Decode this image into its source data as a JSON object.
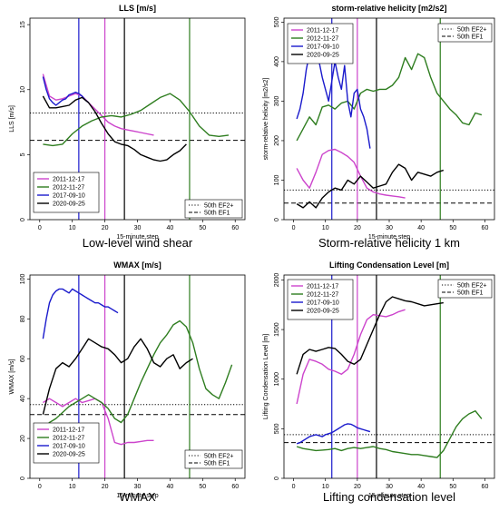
{
  "figure": {
    "captions": [
      "Low-level wind shear",
      "Storm-relative helicity 1 km",
      "WMAX",
      "Lifting condensation level"
    ]
  },
  "colors": {
    "2011-12-17": "#cc44cc",
    "2012-11-27": "#2e7d1f",
    "2017-09-10": "#1a1acc",
    "2020-09-25": "#000000"
  },
  "chart_data": [
    {
      "type": "line",
      "title": "LLS [m/s]",
      "xlabel": "15-minute step",
      "ylabel": "LLS [m/s]",
      "xlim": [
        -3,
        63
      ],
      "ylim": [
        0,
        15.5
      ],
      "xticks": [
        0,
        10,
        20,
        30,
        40,
        50,
        60
      ],
      "yticks": [
        0,
        5,
        10,
        15
      ],
      "grid": false,
      "legend_series_position": "bottom-left",
      "legend_ref_position": "bottom-right",
      "series": [
        {
          "name": "2011-12-17",
          "x": [
            1,
            3,
            5,
            7,
            9,
            11,
            13,
            15,
            17,
            19,
            21,
            23,
            25,
            27,
            29,
            31,
            33,
            35
          ],
          "y": [
            11.2,
            9.5,
            9.2,
            9.3,
            9.5,
            9.7,
            9.5,
            9.0,
            8.5,
            8.0,
            7.5,
            7.2,
            7.0,
            6.9,
            6.8,
            6.7,
            6.6,
            6.5
          ]
        },
        {
          "name": "2012-11-27",
          "x": [
            1,
            4,
            7,
            10,
            13,
            16,
            19,
            22,
            25,
            28,
            31,
            34,
            37,
            40,
            43,
            46,
            49,
            52,
            55,
            58
          ],
          "y": [
            5.8,
            5.7,
            5.8,
            6.6,
            7.2,
            7.6,
            7.9,
            8.0,
            7.9,
            8.1,
            8.4,
            8.9,
            9.4,
            9.7,
            9.2,
            8.3,
            7.2,
            6.5,
            6.4,
            6.5
          ]
        },
        {
          "name": "2017-09-10",
          "x": [
            1,
            2,
            3,
            4,
            5,
            6,
            7,
            8,
            9,
            10,
            11,
            12,
            13,
            14,
            15
          ],
          "y": [
            11.0,
            10.0,
            9.3,
            9.0,
            8.8,
            9.0,
            9.2,
            9.3,
            9.6,
            9.7,
            9.8,
            9.7,
            9.5,
            9.2,
            9.0
          ]
        },
        {
          "name": "2020-09-25",
          "x": [
            1,
            3,
            5,
            7,
            9,
            11,
            13,
            15,
            17,
            19,
            21,
            23,
            25,
            27,
            29,
            31,
            33,
            35,
            37,
            39,
            41,
            43,
            45
          ],
          "y": [
            9.5,
            8.6,
            8.6,
            8.7,
            8.8,
            9.2,
            9.4,
            9.0,
            8.3,
            7.4,
            6.6,
            6.0,
            5.8,
            5.7,
            5.4,
            5.0,
            4.8,
            4.6,
            4.5,
            4.6,
            5.0,
            5.3,
            5.8
          ]
        }
      ],
      "ref_lines": [
        {
          "name": "50th EF2+",
          "style": "dotted",
          "value": 8.2
        },
        {
          "name": "50th EF1",
          "style": "dashed",
          "value": 6.1
        }
      ],
      "vlines": [
        {
          "color_key": "2017-09-10",
          "x": 12
        },
        {
          "color_key": "2011-12-17",
          "x": 20
        },
        {
          "color_key": "2020-09-25",
          "x": 26
        },
        {
          "color_key": "2012-11-27",
          "x": 46
        }
      ]
    },
    {
      "type": "line",
      "title": "storm-relative helicity [m2/s2]",
      "xlabel": "15-minute step",
      "ylabel": "storm-relative helicity [m2/s2]",
      "xlim": [
        -3,
        63
      ],
      "ylim": [
        0,
        510
      ],
      "xticks": [
        0,
        10,
        20,
        30,
        40,
        50,
        60
      ],
      "yticks": [
        0,
        100,
        200,
        300,
        400,
        500
      ],
      "grid": false,
      "legend_series_position": "top-left",
      "legend_ref_position": "top-right",
      "series": [
        {
          "name": "2011-12-17",
          "x": [
            1,
            3,
            5,
            7,
            9,
            11,
            13,
            15,
            17,
            19,
            21,
            23,
            25,
            27,
            29,
            31,
            33,
            35
          ],
          "y": [
            130,
            100,
            80,
            120,
            165,
            175,
            178,
            170,
            160,
            145,
            110,
            80,
            70,
            65,
            62,
            60,
            58,
            55
          ]
        },
        {
          "name": "2012-11-27",
          "x": [
            1,
            3,
            5,
            7,
            9,
            11,
            13,
            15,
            17,
            19,
            21,
            23,
            25,
            27,
            29,
            31,
            33,
            35,
            37,
            39,
            41,
            43,
            45,
            47,
            49,
            51,
            53,
            55,
            57,
            59
          ],
          "y": [
            200,
            230,
            260,
            240,
            285,
            290,
            280,
            295,
            300,
            280,
            320,
            330,
            325,
            330,
            330,
            340,
            360,
            410,
            380,
            420,
            410,
            360,
            320,
            300,
            280,
            265,
            245,
            240,
            270,
            265
          ]
        },
        {
          "name": "2017-09-10",
          "x": [
            1,
            2,
            3,
            4,
            5,
            6,
            7,
            8,
            9,
            10,
            11,
            12,
            13,
            14,
            15,
            16,
            17,
            18,
            19,
            20,
            21,
            22,
            23,
            24
          ],
          "y": [
            255,
            280,
            320,
            380,
            420,
            440,
            430,
            400,
            360,
            330,
            300,
            350,
            400,
            360,
            330,
            390,
            300,
            260,
            320,
            330,
            280,
            260,
            230,
            180
          ]
        },
        {
          "name": "2020-09-25",
          "x": [
            1,
            3,
            5,
            7,
            9,
            11,
            13,
            15,
            17,
            19,
            21,
            23,
            25,
            27,
            29,
            31,
            33,
            35,
            37,
            39,
            41,
            43,
            45,
            47
          ],
          "y": [
            40,
            30,
            45,
            30,
            55,
            70,
            80,
            75,
            100,
            90,
            110,
            95,
            80,
            85,
            90,
            120,
            140,
            130,
            100,
            120,
            115,
            110,
            120,
            125
          ]
        }
      ],
      "ref_lines": [
        {
          "name": "50th EF2+",
          "style": "dotted",
          "value": 75
        },
        {
          "name": "50th EF1",
          "style": "dashed",
          "value": 42
        }
      ],
      "vlines": [
        {
          "color_key": "2017-09-10",
          "x": 12
        },
        {
          "color_key": "2011-12-17",
          "x": 20
        },
        {
          "color_key": "2020-09-25",
          "x": 26
        },
        {
          "color_key": "2012-11-27",
          "x": 46
        }
      ]
    },
    {
      "type": "line",
      "title": "WMAX [m/s]",
      "xlabel": "15-minute step",
      "ylabel": "WMAX [m/s]",
      "xlim": [
        -3,
        63
      ],
      "ylim": [
        0,
        102
      ],
      "xticks": [
        0,
        10,
        20,
        30,
        40,
        50,
        60
      ],
      "yticks": [
        0,
        20,
        40,
        60,
        80,
        100
      ],
      "grid": false,
      "legend_series_position": "bottom-left",
      "legend_ref_position": "bottom-right",
      "series": [
        {
          "name": "2011-12-17",
          "x": [
            1,
            3,
            5,
            7,
            9,
            11,
            13,
            15,
            17,
            19,
            21,
            23,
            25,
            27,
            29,
            31,
            33,
            35
          ],
          "y": [
            38,
            40,
            38,
            36,
            38,
            40,
            38,
            39,
            40,
            38,
            30,
            18,
            17,
            18,
            18,
            18.5,
            19,
            19
          ]
        },
        {
          "name": "2012-11-27",
          "x": [
            1,
            3,
            5,
            7,
            9,
            11,
            13,
            15,
            17,
            19,
            21,
            23,
            25,
            27,
            29,
            31,
            33,
            35,
            37,
            39,
            41,
            43,
            45,
            47,
            49,
            51,
            53,
            55,
            57,
            59
          ],
          "y": [
            24,
            28,
            30,
            33,
            36,
            38,
            40,
            42,
            40,
            38,
            35,
            30,
            28,
            32,
            40,
            48,
            55,
            62,
            68,
            72,
            77,
            79,
            76,
            68,
            55,
            45,
            42,
            40,
            48,
            57
          ]
        },
        {
          "name": "2017-09-10",
          "x": [
            1,
            2,
            3,
            4,
            5,
            6,
            7,
            8,
            9,
            10,
            11,
            12,
            13,
            14,
            15,
            16,
            17,
            18,
            19,
            20,
            21,
            22,
            23,
            24
          ],
          "y": [
            70,
            80,
            88,
            92,
            94,
            95,
            95,
            94,
            93,
            95,
            94,
            93,
            92,
            91,
            90,
            89,
            88,
            88,
            87,
            86,
            86,
            85,
            84,
            83
          ]
        },
        {
          "name": "2020-09-25",
          "x": [
            1,
            3,
            5,
            7,
            9,
            11,
            13,
            15,
            17,
            19,
            21,
            23,
            25,
            27,
            29,
            31,
            33,
            35,
            37,
            39,
            41,
            43,
            45,
            47
          ],
          "y": [
            32,
            45,
            55,
            58,
            56,
            60,
            65,
            70,
            68,
            66,
            65,
            62,
            58,
            60,
            66,
            70,
            65,
            58,
            56,
            60,
            62,
            55,
            58,
            60
          ]
        }
      ],
      "ref_lines": [
        {
          "name": "50th EF2+",
          "style": "dotted",
          "value": 37
        },
        {
          "name": "50th EF1",
          "style": "dashed",
          "value": 32
        }
      ],
      "vlines": [
        {
          "color_key": "2017-09-10",
          "x": 12
        },
        {
          "color_key": "2011-12-17",
          "x": 20
        },
        {
          "color_key": "2020-09-25",
          "x": 26
        },
        {
          "color_key": "2012-11-27",
          "x": 46
        }
      ]
    },
    {
      "type": "line",
      "title": "Lifting Condensation Level [m]",
      "xlabel": "15-minute step",
      "ylabel": "Lifting Condensation Level [m]",
      "xlim": [
        -3,
        63
      ],
      "ylim": [
        0,
        2050
      ],
      "xticks": [
        0,
        10,
        20,
        30,
        40,
        50,
        60
      ],
      "yticks": [
        0,
        500,
        1000,
        1500,
        2000
      ],
      "grid": false,
      "legend_series_position": "top-left",
      "legend_ref_position": "top-right",
      "series": [
        {
          "name": "2011-12-17",
          "x": [
            1,
            3,
            5,
            7,
            9,
            11,
            13,
            15,
            17,
            19,
            21,
            23,
            25,
            27,
            29,
            31,
            33,
            35
          ],
          "y": [
            750,
            1050,
            1200,
            1180,
            1150,
            1100,
            1080,
            1050,
            1100,
            1250,
            1450,
            1600,
            1650,
            1640,
            1630,
            1650,
            1680,
            1700
          ]
        },
        {
          "name": "2012-11-27",
          "x": [
            1,
            3,
            5,
            7,
            9,
            11,
            13,
            15,
            17,
            19,
            21,
            23,
            25,
            27,
            29,
            31,
            33,
            35,
            37,
            39,
            41,
            43,
            45,
            47,
            49,
            51,
            53,
            55,
            57,
            59
          ],
          "y": [
            320,
            300,
            290,
            280,
            285,
            290,
            300,
            280,
            300,
            310,
            300,
            310,
            320,
            300,
            290,
            270,
            260,
            250,
            240,
            240,
            230,
            220,
            210,
            280,
            400,
            520,
            600,
            650,
            680,
            600
          ]
        },
        {
          "name": "2017-09-10",
          "x": [
            1,
            2,
            3,
            4,
            5,
            6,
            7,
            8,
            9,
            10,
            11,
            12,
            13,
            14,
            15,
            16,
            17,
            18,
            19,
            20,
            21,
            22,
            23,
            24
          ],
          "y": [
            350,
            360,
            380,
            400,
            420,
            430,
            440,
            430,
            420,
            440,
            450,
            460,
            480,
            500,
            520,
            540,
            550,
            545,
            530,
            510,
            500,
            490,
            480,
            470
          ]
        },
        {
          "name": "2020-09-25",
          "x": [
            1,
            3,
            5,
            7,
            9,
            11,
            13,
            15,
            17,
            19,
            21,
            23,
            25,
            27,
            29,
            31,
            33,
            35,
            37,
            39,
            41,
            43,
            45,
            47
          ],
          "y": [
            1050,
            1250,
            1300,
            1280,
            1300,
            1320,
            1310,
            1250,
            1180,
            1150,
            1200,
            1350,
            1500,
            1650,
            1780,
            1830,
            1810,
            1790,
            1780,
            1760,
            1740,
            1750,
            1760,
            1770
          ]
        }
      ],
      "ref_lines": [
        {
          "name": "50th EF2+",
          "style": "dotted",
          "value": 440
        },
        {
          "name": "50th EF1",
          "style": "dashed",
          "value": 360
        }
      ],
      "vlines": [
        {
          "color_key": "2017-09-10",
          "x": 12
        },
        {
          "color_key": "2011-12-17",
          "x": 20
        },
        {
          "color_key": "2020-09-25",
          "x": 26
        },
        {
          "color_key": "2012-11-27",
          "x": 46
        }
      ]
    }
  ]
}
